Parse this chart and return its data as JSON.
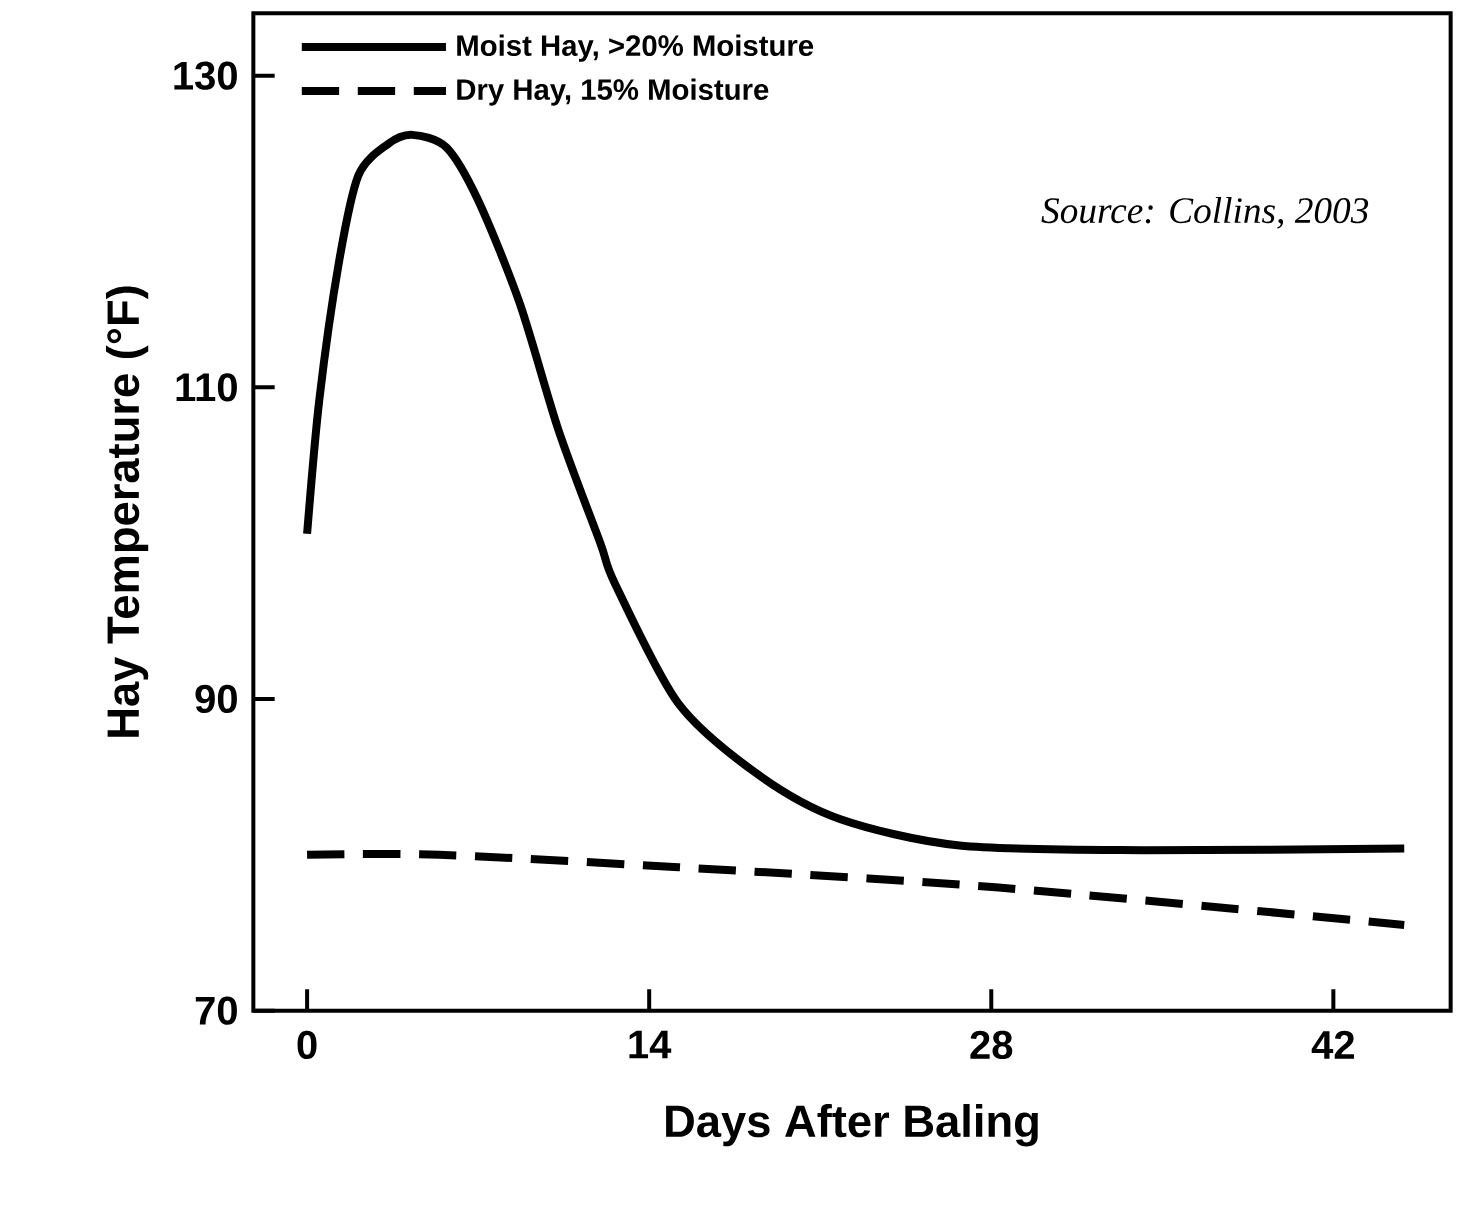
{
  "chart_data": {
    "type": "line",
    "xlabel": "Days After Baling",
    "ylabel": "Hay Temperature (°F)",
    "xlim": [
      -2.2,
      46.8
    ],
    "ylim": [
      70,
      134
    ],
    "xticks": [
      0,
      14,
      28,
      42
    ],
    "yticks": [
      70,
      90,
      110,
      130
    ],
    "legend": "top left",
    "marker": "none",
    "grid": false,
    "annotations": [
      "Source:  Collins, 2003"
    ],
    "series": [
      {
        "name": "Moist Hay, >20% Moisture",
        "color": "#000000",
        "line_style": "solid",
        "x": [
          0,
          0.5,
          1.3,
          2.1,
          3.3,
          4.3,
          5.7,
          7.0,
          8.7,
          10.3,
          12.0,
          12.6,
          15.2,
          18.5,
          21.8,
          26.7,
          34.2,
          44.9
        ],
        "values": [
          100.6,
          109.2,
          118,
          123.6,
          125.6,
          126.2,
          125.4,
          122,
          115.4,
          107.2,
          100,
          97.4,
          89.7,
          85.1,
          82.3,
          80.6,
          80.3,
          80.4
        ]
      },
      {
        "name": "Dry Hay, 15% Moisture",
        "color": "#000000",
        "line_style": "dashed",
        "x": [
          0,
          5.4,
          15.2,
          28.3,
          44.9
        ],
        "values": [
          80,
          80,
          79.2,
          77.9,
          75.5
        ]
      }
    ]
  }
}
